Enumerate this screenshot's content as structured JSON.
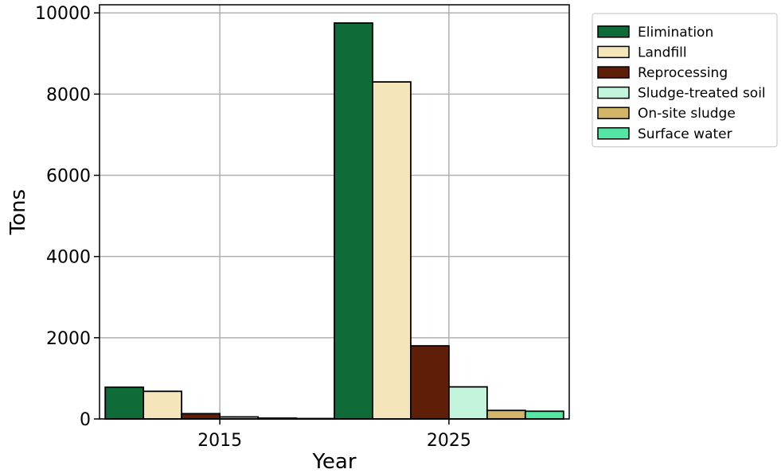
{
  "chart_data": {
    "type": "bar",
    "categories": [
      "2015",
      "2025"
    ],
    "xlabel": "Year",
    "ylabel": "Tons",
    "ylim": [
      0,
      10200
    ],
    "yticks": [
      0,
      2000,
      4000,
      6000,
      8000,
      10000
    ],
    "grid": true,
    "legend_position": "outside-top-right",
    "series": [
      {
        "name": "Elimination",
        "color": "#0f6b37",
        "values": [
          780,
          9750
        ]
      },
      {
        "name": "Landfill",
        "color": "#f5e5bb",
        "values": [
          680,
          8300
        ]
      },
      {
        "name": "Reprocessing",
        "color": "#5e1e08",
        "values": [
          130,
          1800
        ]
      },
      {
        "name": "Sludge-treated soil",
        "color": "#c2f5dc",
        "values": [
          50,
          790
        ]
      },
      {
        "name": "On-site sludge",
        "color": "#d2b568",
        "values": [
          20,
          210
        ]
      },
      {
        "name": "Surface water",
        "color": "#55e6a3",
        "values": [
          10,
          190
        ]
      }
    ]
  }
}
